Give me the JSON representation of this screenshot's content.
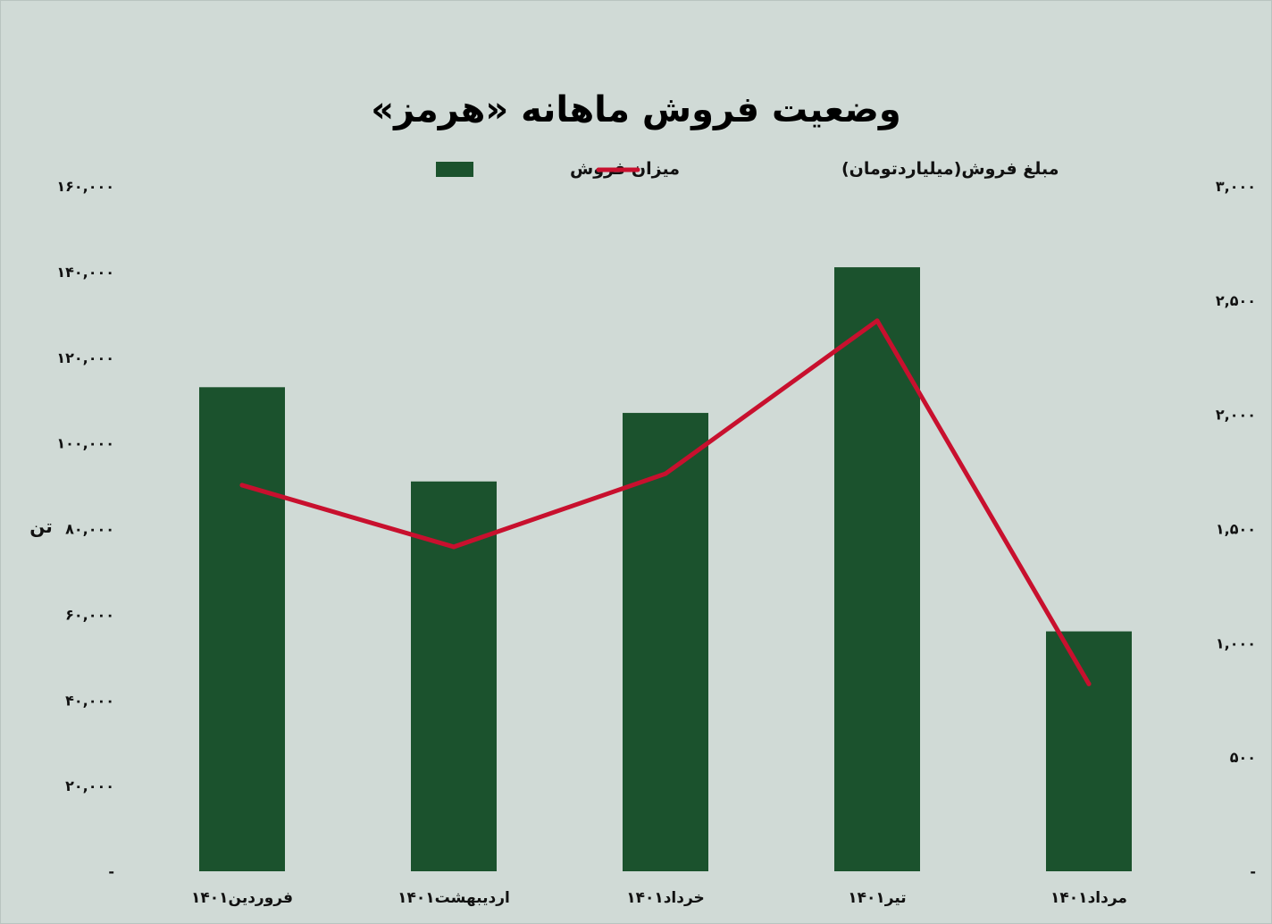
{
  "chart_data": {
    "type": "bar",
    "title": "وضعیت فروش ماهانه «هرمز»",
    "categories": [
      "فروردین۱۴۰۱",
      "اردیبهشت۱۴۰۱",
      "خرداد۱۴۰۱",
      "تیر۱۴۰۱",
      "مرداد۱۴۰۱"
    ],
    "series": [
      {
        "name": "میزان فروش",
        "kind": "bar",
        "axis": "left",
        "color": "#1b522d",
        "values": [
          113000,
          91000,
          107000,
          141000,
          56000
        ]
      },
      {
        "name": "مبلغ فروش(میلیاردتومان)",
        "kind": "line",
        "axis": "right",
        "color": "#c8102e",
        "values": [
          1690,
          1420,
          1740,
          2410,
          820
        ]
      }
    ],
    "y_left": {
      "label": "تن",
      "ylim": [
        0,
        160000
      ],
      "ticks": [
        "-",
        "۲۰,۰۰۰",
        "۴۰,۰۰۰",
        "۶۰,۰۰۰",
        "۸۰,۰۰۰",
        "۱۰۰,۰۰۰",
        "۱۲۰,۰۰۰",
        "۱۴۰,۰۰۰",
        "۱۶۰,۰۰۰"
      ]
    },
    "y_right": {
      "ylim": [
        0,
        3000
      ],
      "ticks": [
        "-",
        "۵۰۰",
        "۱,۰۰۰",
        "۱,۵۰۰",
        "۲,۰۰۰",
        "۲,۵۰۰",
        "۳,۰۰۰"
      ]
    },
    "legend": "top-center",
    "grid": false
  }
}
